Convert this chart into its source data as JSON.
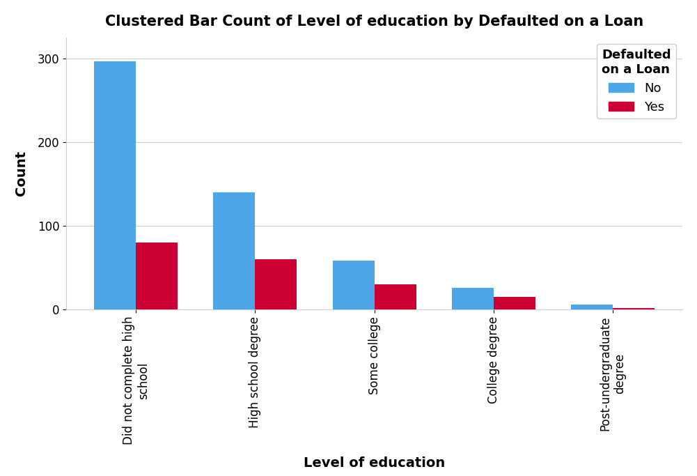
{
  "title": "Clustered Bar Count of Level of education by Defaulted on a Loan",
  "xlabel": "Level of education",
  "ylabel": "Count",
  "legend_title": "Defaulted\non a Loan",
  "categories": [
    "Did not complete high\nschool",
    "High school degree",
    "Some college",
    "College degree",
    "Post-undergraduate\ndegree"
  ],
  "no_values": [
    296,
    140,
    58,
    26,
    6
  ],
  "yes_values": [
    80,
    60,
    30,
    15,
    2
  ],
  "no_color": "#4da6e8",
  "yes_color": "#cc0033",
  "ylim": [
    0,
    325
  ],
  "yticks": [
    0,
    100,
    200,
    300
  ],
  "bar_width": 0.35,
  "title_fontsize": 15,
  "axis_label_fontsize": 14,
  "tick_fontsize": 12,
  "legend_fontsize": 13,
  "background_color": "#ffffff",
  "grid_color": "#cccccc"
}
